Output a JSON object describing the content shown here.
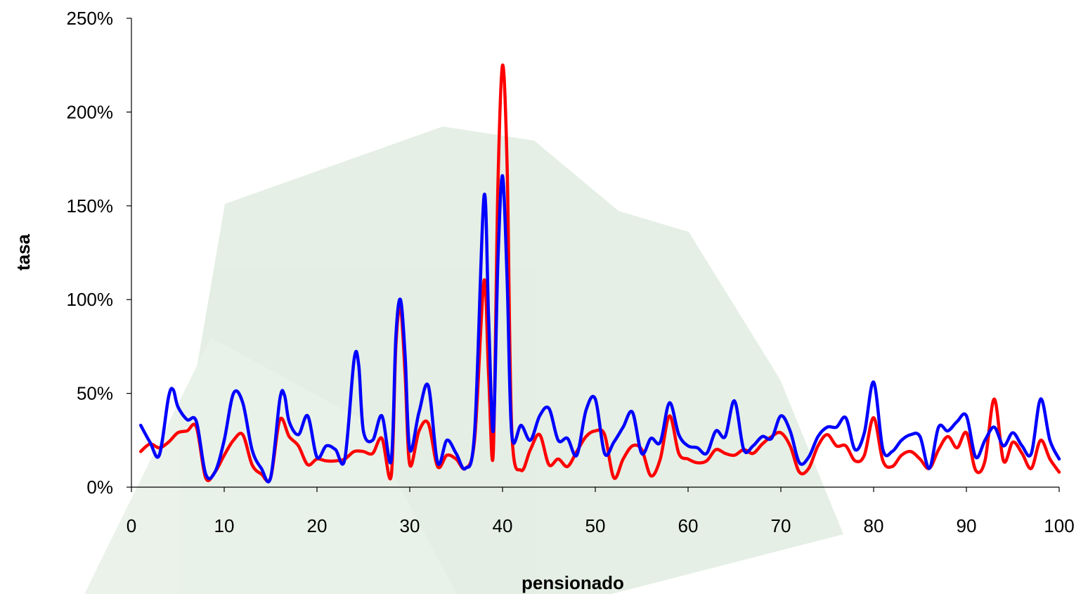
{
  "chart_data": {
    "type": "line",
    "title": "",
    "xlabel": "pensionado",
    "ylabel": "tasa",
    "xlim": [
      0,
      100
    ],
    "ylim": [
      0,
      250
    ],
    "x_ticks": [
      0,
      10,
      20,
      30,
      40,
      50,
      60,
      70,
      80,
      90,
      100
    ],
    "y_ticks": [
      0,
      50,
      100,
      150,
      200,
      250
    ],
    "y_tick_labels": [
      "0%",
      "50%",
      "100%",
      "150%",
      "200%",
      "250%"
    ],
    "grid": false,
    "legend": "none",
    "series": [
      {
        "color": "#ff0000",
        "points": [
          [
            1,
            19
          ],
          [
            2,
            23
          ],
          [
            3,
            21
          ],
          [
            4,
            24
          ],
          [
            5,
            29
          ],
          [
            6,
            30
          ],
          [
            7,
            32
          ],
          [
            8,
            5
          ],
          [
            9,
            8
          ],
          [
            10,
            17
          ],
          [
            11,
            25
          ],
          [
            12,
            28
          ],
          [
            13,
            12
          ],
          [
            14,
            7
          ],
          [
            15,
            5
          ],
          [
            16,
            36
          ],
          [
            17,
            27
          ],
          [
            18,
            22
          ],
          [
            19,
            12
          ],
          [
            20,
            15
          ],
          [
            21,
            14
          ],
          [
            22,
            14
          ],
          [
            23,
            15
          ],
          [
            24,
            19
          ],
          [
            25,
            19
          ],
          [
            26,
            18
          ],
          [
            27,
            26
          ],
          [
            28,
            6
          ],
          [
            28.5,
            75
          ],
          [
            29,
            96
          ],
          [
            29.5,
            60
          ],
          [
            30,
            12
          ],
          [
            31,
            30
          ],
          [
            32,
            34
          ],
          [
            33,
            11
          ],
          [
            34,
            17
          ],
          [
            35,
            15
          ],
          [
            36,
            10
          ],
          [
            37,
            26
          ],
          [
            38,
            110
          ],
          [
            38.5,
            60
          ],
          [
            39,
            18
          ],
          [
            39.5,
            160
          ],
          [
            40,
            225
          ],
          [
            40.5,
            170
          ],
          [
            41,
            30
          ],
          [
            42,
            9
          ],
          [
            43,
            20
          ],
          [
            44,
            28
          ],
          [
            45,
            12
          ],
          [
            46,
            15
          ],
          [
            47,
            11
          ],
          [
            48,
            19
          ],
          [
            49,
            27
          ],
          [
            50,
            30
          ],
          [
            51,
            28
          ],
          [
            52,
            5
          ],
          [
            53,
            15
          ],
          [
            54,
            22
          ],
          [
            55,
            20
          ],
          [
            56,
            6
          ],
          [
            57,
            15
          ],
          [
            58,
            38
          ],
          [
            59,
            18
          ],
          [
            60,
            15
          ],
          [
            61,
            13
          ],
          [
            62,
            14
          ],
          [
            63,
            20
          ],
          [
            64,
            18
          ],
          [
            65,
            17
          ],
          [
            66,
            20
          ],
          [
            67,
            18
          ],
          [
            68,
            23
          ],
          [
            69,
            27
          ],
          [
            70,
            29
          ],
          [
            71,
            22
          ],
          [
            72,
            8
          ],
          [
            73,
            10
          ],
          [
            74,
            22
          ],
          [
            75,
            28
          ],
          [
            76,
            22
          ],
          [
            77,
            22
          ],
          [
            78,
            14
          ],
          [
            79,
            17
          ],
          [
            80,
            37
          ],
          [
            81,
            14
          ],
          [
            82,
            11
          ],
          [
            83,
            17
          ],
          [
            84,
            19
          ],
          [
            85,
            15
          ],
          [
            86,
            10
          ],
          [
            87,
            20
          ],
          [
            88,
            27
          ],
          [
            89,
            21
          ],
          [
            90,
            29
          ],
          [
            91,
            9
          ],
          [
            92,
            14
          ],
          [
            93,
            47
          ],
          [
            94,
            14
          ],
          [
            95,
            24
          ],
          [
            96,
            18
          ],
          [
            97,
            10
          ],
          [
            98,
            25
          ],
          [
            99,
            15
          ],
          [
            100,
            8
          ]
        ]
      },
      {
        "color": "#0000ff",
        "points": [
          [
            1,
            33
          ],
          [
            2,
            24
          ],
          [
            3,
            17
          ],
          [
            4,
            48
          ],
          [
            4.5,
            52
          ],
          [
            5,
            43
          ],
          [
            6,
            36
          ],
          [
            7,
            35
          ],
          [
            8,
            7
          ],
          [
            9,
            8
          ],
          [
            10,
            25
          ],
          [
            11,
            50
          ],
          [
            12,
            45
          ],
          [
            13,
            20
          ],
          [
            14,
            10
          ],
          [
            15,
            5
          ],
          [
            16,
            47
          ],
          [
            16.5,
            49
          ],
          [
            17,
            35
          ],
          [
            18,
            28
          ],
          [
            19,
            38
          ],
          [
            20,
            16
          ],
          [
            21,
            22
          ],
          [
            22,
            20
          ],
          [
            23,
            15
          ],
          [
            24,
            68
          ],
          [
            24.5,
            65
          ],
          [
            25,
            30
          ],
          [
            26,
            25
          ],
          [
            27,
            38
          ],
          [
            28,
            14
          ],
          [
            28.5,
            80
          ],
          [
            29,
            100
          ],
          [
            29.5,
            70
          ],
          [
            30,
            20
          ],
          [
            31,
            40
          ],
          [
            32,
            54
          ],
          [
            33,
            13
          ],
          [
            34,
            25
          ],
          [
            35,
            18
          ],
          [
            36,
            10
          ],
          [
            37,
            30
          ],
          [
            38,
            155
          ],
          [
            38.5,
            90
          ],
          [
            39,
            30
          ],
          [
            39.5,
            120
          ],
          [
            40,
            166
          ],
          [
            40.5,
            110
          ],
          [
            41,
            28
          ],
          [
            42,
            33
          ],
          [
            43,
            25
          ],
          [
            44,
            38
          ],
          [
            45,
            42
          ],
          [
            46,
            25
          ],
          [
            47,
            26
          ],
          [
            48,
            17
          ],
          [
            49,
            41
          ],
          [
            50,
            47
          ],
          [
            51,
            18
          ],
          [
            52,
            24
          ],
          [
            53,
            32
          ],
          [
            54,
            40
          ],
          [
            55,
            18
          ],
          [
            56,
            26
          ],
          [
            57,
            24
          ],
          [
            58,
            45
          ],
          [
            59,
            28
          ],
          [
            60,
            22
          ],
          [
            61,
            21
          ],
          [
            62,
            18
          ],
          [
            63,
            30
          ],
          [
            64,
            27
          ],
          [
            65,
            46
          ],
          [
            66,
            20
          ],
          [
            67,
            22
          ],
          [
            68,
            27
          ],
          [
            69,
            26
          ],
          [
            70,
            38
          ],
          [
            71,
            30
          ],
          [
            72,
            13
          ],
          [
            73,
            16
          ],
          [
            74,
            27
          ],
          [
            75,
            32
          ],
          [
            76,
            32
          ],
          [
            77,
            37
          ],
          [
            78,
            20
          ],
          [
            79,
            29
          ],
          [
            80,
            56
          ],
          [
            81,
            20
          ],
          [
            82,
            19
          ],
          [
            83,
            25
          ],
          [
            84,
            28
          ],
          [
            85,
            27
          ],
          [
            86,
            10
          ],
          [
            87,
            32
          ],
          [
            88,
            30
          ],
          [
            89,
            35
          ],
          [
            90,
            38
          ],
          [
            91,
            16
          ],
          [
            92,
            25
          ],
          [
            93,
            32
          ],
          [
            94,
            22
          ],
          [
            95,
            29
          ],
          [
            96,
            22
          ],
          [
            97,
            18
          ],
          [
            98,
            47
          ],
          [
            99,
            25
          ],
          [
            100,
            15
          ]
        ]
      }
    ]
  }
}
